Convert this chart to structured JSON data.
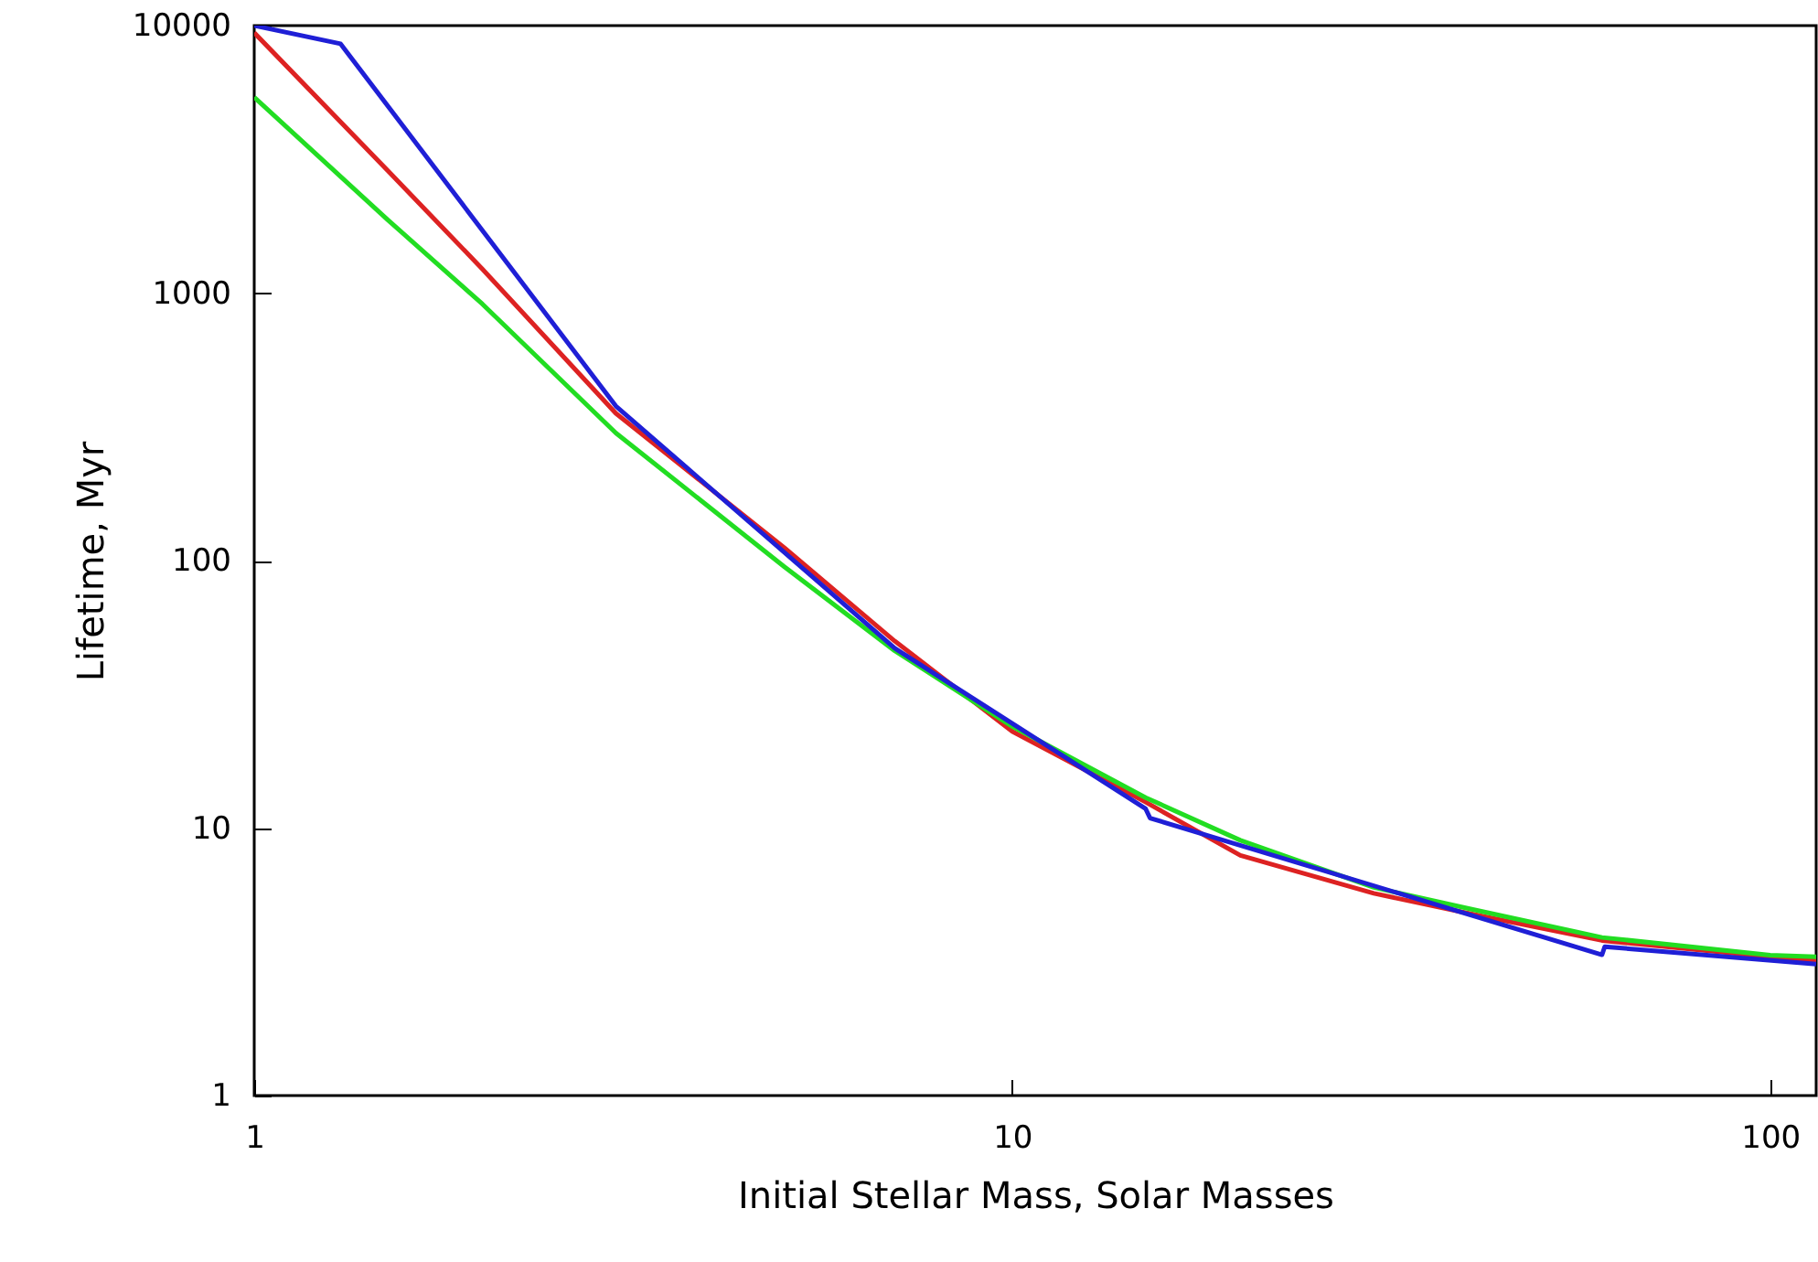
{
  "chart_data": {
    "type": "line",
    "xlabel": "Initial Stellar Mass, Solar Masses",
    "ylabel": "Lifetime, Myr",
    "log": "xy",
    "grid": false,
    "marker": "none",
    "line_style": "solid",
    "xlim": [
      1,
      115
    ],
    "xticks": [
      1,
      10,
      100
    ],
    "ylim": [
      1,
      10000
    ],
    "yticks": [
      1,
      10,
      100,
      1000,
      10000
    ],
    "series": [
      {
        "color": "#dd2222",
        "x": [
          1,
          1.5,
          2,
          3,
          5,
          7,
          10,
          15,
          20,
          30,
          40,
          60,
          100,
          115
        ],
        "values": [
          9400,
          2870,
          1230,
          355,
          112,
          50,
          23,
          12.5,
          7.9,
          5.7,
          4.8,
          3.8,
          3.3,
          3.2
        ]
      },
      {
        "color": "#22dd22",
        "x": [
          1,
          1.5,
          2,
          3,
          5,
          7,
          10,
          15,
          20,
          30,
          40,
          60,
          100,
          115
        ],
        "values": [
          5400,
          1880,
          910,
          300,
          95,
          46,
          24,
          13,
          9,
          6,
          5,
          3.9,
          3.35,
          3.3
        ]
      },
      {
        "color": "#1f1fd6",
        "x": [
          1,
          1.3,
          3,
          7,
          15,
          15.2,
          60,
          60.5,
          115
        ],
        "values": [
          10000,
          8550,
          378,
          47,
          11.8,
          10.9,
          3.36,
          3.6,
          3.1
        ]
      }
    ]
  }
}
